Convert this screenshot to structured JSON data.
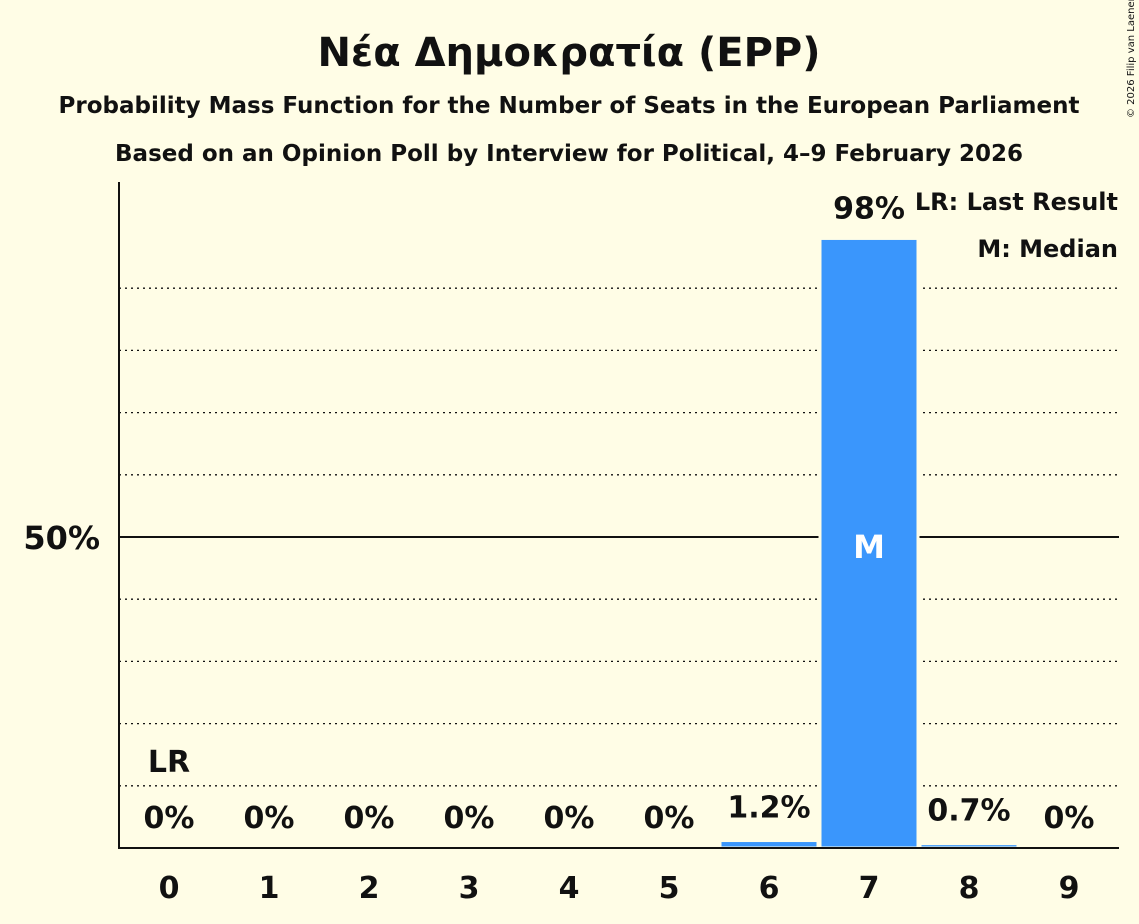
{
  "chart_data": {
    "type": "bar",
    "title": "Νέα Δημοκρατία (EPP)",
    "subtitle": "Probability Mass Function for the Number of Seats in the European Parliament",
    "subtitle2": "Based on an Opinion Poll by Interview for Political, 4–9 February 2026",
    "categories": [
      "0",
      "1",
      "2",
      "3",
      "4",
      "5",
      "6",
      "7",
      "8",
      "9"
    ],
    "values": [
      0,
      0,
      0,
      0,
      0,
      0,
      1.2,
      98,
      0.7,
      0
    ],
    "value_labels": [
      "0%",
      "0%",
      "0%",
      "0%",
      "0%",
      "0%",
      "1.2%",
      "98%",
      "0.7%",
      "0%"
    ],
    "ylim": [
      0,
      100
    ],
    "ytick_label": "50%",
    "ytick_value": 50,
    "grid_step": 10,
    "last_result_index": 0,
    "last_result_label": "LR",
    "median_index": 7,
    "median_label": "M",
    "legend": [
      "LR: Last Result",
      "M: Median"
    ],
    "legend_position": "top-right",
    "bar_color": "#3a96fc",
    "copyright": "© 2026 Filip van Laenen"
  }
}
